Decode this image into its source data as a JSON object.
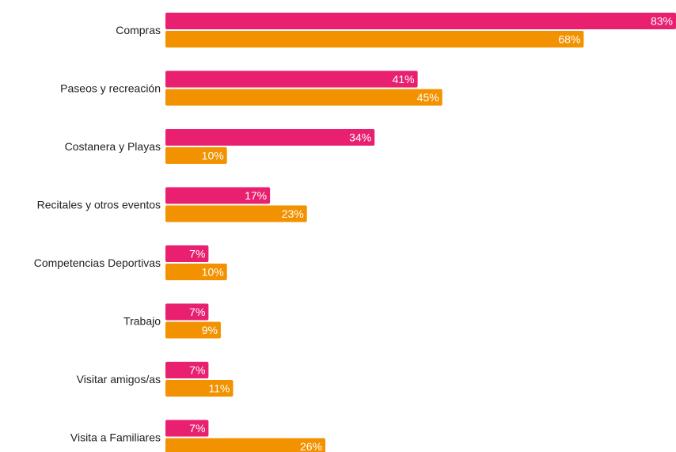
{
  "chart_data": {
    "type": "bar",
    "orientation": "horizontal",
    "categories": [
      "Compras",
      "Paseos y recreación",
      "Costanera y Playas",
      "Recitales y otros eventos",
      "Competencias Deportivas",
      "Trabajo",
      "Visitar amigos/as",
      "Visita a Familiares"
    ],
    "series": [
      {
        "color": "#e8206f",
        "values": [
          83,
          41,
          34,
          17,
          7,
          7,
          7,
          7
        ]
      },
      {
        "color": "#f39200",
        "values": [
          68,
          45,
          10,
          23,
          10,
          9,
          11,
          26
        ]
      }
    ],
    "value_suffix": "%",
    "xlim": [
      0,
      83
    ],
    "grid": false,
    "title": "",
    "xlabel": "",
    "ylabel": ""
  }
}
